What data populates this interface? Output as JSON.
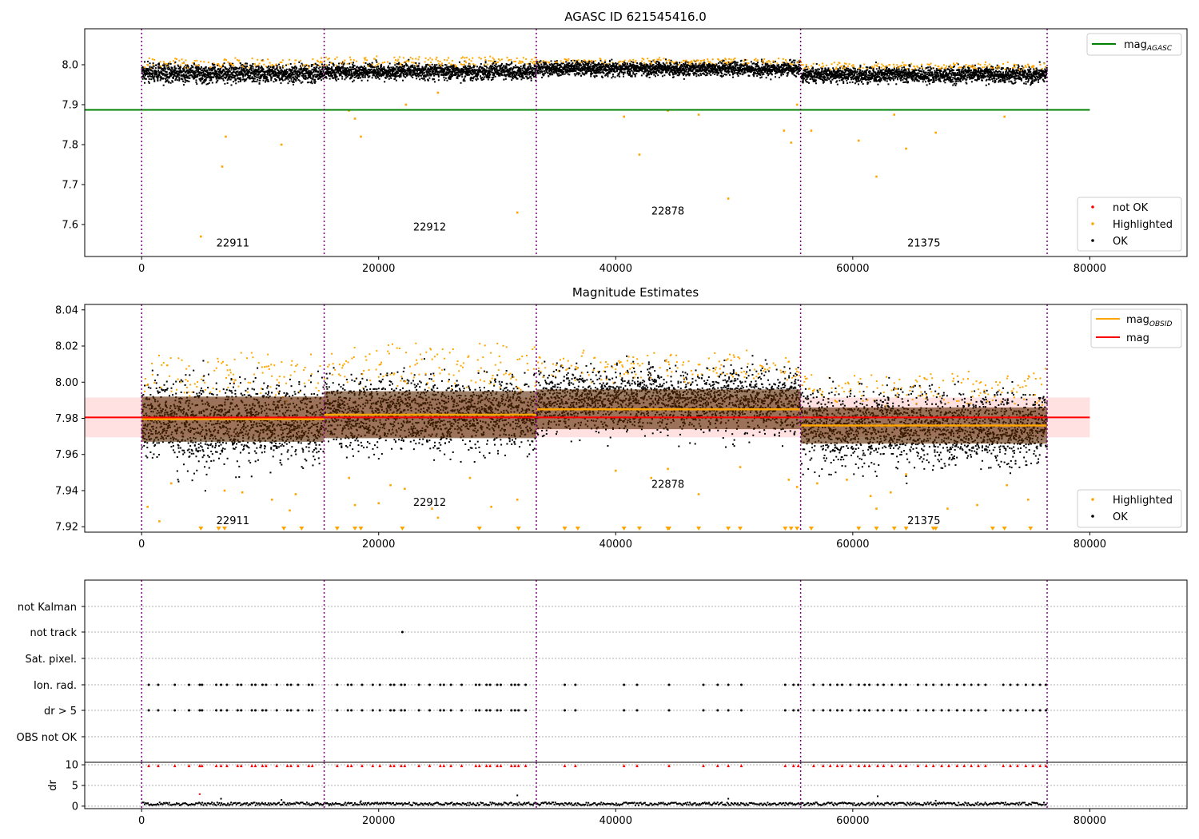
{
  "chart_data": [
    {
      "type": "scatter",
      "title": "AGASC ID 621545416.0",
      "xlim": [
        -4800,
        88200
      ],
      "ylim": [
        7.52,
        8.09
      ],
      "xticks": [
        0,
        20000,
        40000,
        60000,
        80000
      ],
      "yticks": [
        7.6,
        7.7,
        7.8,
        7.9,
        8.0
      ],
      "obsid_boundaries": [
        0,
        15400,
        33300,
        55600,
        76400
      ],
      "obsid_labels": [
        {
          "x": 7700,
          "y": 7.545,
          "text": "22911"
        },
        {
          "x": 24300,
          "y": 7.585,
          "text": "22912"
        },
        {
          "x": 44400,
          "y": 7.625,
          "text": "22878"
        },
        {
          "x": 66000,
          "y": 7.545,
          "text": "21375"
        }
      ],
      "lines": [
        {
          "name": "mag_AGASC",
          "y": 7.887,
          "x": [
            -4800,
            80000
          ],
          "color": "#008000"
        }
      ],
      "segments": [
        {
          "x0": 0,
          "x1": 15400,
          "center": 7.978,
          "spread": 0.028,
          "hi_above": 0.042
        },
        {
          "x0": 15400,
          "x1": 33300,
          "center": 7.983,
          "spread": 0.025,
          "hi_above": 0.045
        },
        {
          "x0": 33300,
          "x1": 55600,
          "center": 7.99,
          "spread": 0.022,
          "hi_above": 0.025
        },
        {
          "x0": 55600,
          "x1": 76400,
          "center": 7.975,
          "spread": 0.025,
          "hi_above": 0.03
        }
      ],
      "outliers": [
        [
          5000,
          7.57
        ],
        [
          6800,
          7.745
        ],
        [
          7100,
          7.82
        ],
        [
          11800,
          7.8
        ],
        [
          17500,
          7.885
        ],
        [
          18000,
          7.865
        ],
        [
          18500,
          7.82
        ],
        [
          22300,
          7.9
        ],
        [
          25000,
          7.93
        ],
        [
          31700,
          7.63
        ],
        [
          40700,
          7.87
        ],
        [
          42000,
          7.775
        ],
        [
          44400,
          7.885
        ],
        [
          47000,
          7.875
        ],
        [
          49500,
          7.665
        ],
        [
          54800,
          7.805
        ],
        [
          54200,
          7.835
        ],
        [
          55300,
          7.9
        ],
        [
          56500,
          7.835
        ],
        [
          60500,
          7.81
        ],
        [
          62000,
          7.72
        ],
        [
          63500,
          7.875
        ],
        [
          64500,
          7.79
        ],
        [
          67000,
          7.83
        ],
        [
          72800,
          7.87
        ]
      ],
      "legend": [
        {
          "label": "not OK",
          "color": "#ff0000"
        },
        {
          "label": "Highlighted",
          "color": "#ffa500"
        },
        {
          "label": "OK",
          "color": "#000000"
        }
      ],
      "line_legend": [
        {
          "label_main": "mag",
          "label_sub": "AGASC",
          "color": "#008000"
        }
      ]
    },
    {
      "type": "scatter",
      "title": "Magnitude Estimates",
      "xlim": [
        -4800,
        88200
      ],
      "ylim": [
        7.917,
        8.043
      ],
      "xticks": [
        0,
        20000,
        40000,
        60000,
        80000
      ],
      "yticks": [
        7.92,
        7.94,
        7.96,
        7.98,
        8.0,
        8.02,
        8.04
      ],
      "obsid_boundaries": [
        0,
        15400,
        33300,
        55600,
        76400
      ],
      "obsid_labels": [
        {
          "x": 7700,
          "y": 7.9215,
          "text": "22911"
        },
        {
          "x": 24300,
          "y": 7.9315,
          "text": "22912"
        },
        {
          "x": 44400,
          "y": 7.9415,
          "text": "22878"
        },
        {
          "x": 66000,
          "y": 7.9215,
          "text": "21375"
        }
      ],
      "mag": 7.9805,
      "mag_band": [
        7.9695,
        7.9915
      ],
      "mag_obsid": [
        {
          "x0": 0,
          "x1": 15400,
          "y": 7.9795,
          "band": [
            7.967,
            7.992
          ]
        },
        {
          "x0": 15400,
          "x1": 33300,
          "y": 7.982,
          "band": [
            7.969,
            7.995
          ]
        },
        {
          "x0": 33300,
          "x1": 55600,
          "y": 7.985,
          "band": [
            7.974,
            7.996
          ]
        },
        {
          "x0": 55600,
          "x1": 76400,
          "y": 7.976,
          "band": [
            7.966,
            7.986
          ]
        }
      ],
      "segments": [
        {
          "x0": 0,
          "x1": 15400,
          "center": 7.978,
          "spread": 0.028,
          "hi_above": 0.042
        },
        {
          "x0": 15400,
          "x1": 33300,
          "center": 7.983,
          "spread": 0.025,
          "hi_above": 0.045
        },
        {
          "x0": 33300,
          "x1": 55600,
          "center": 7.99,
          "spread": 0.022,
          "hi_above": 0.025
        },
        {
          "x0": 55600,
          "x1": 76400,
          "center": 7.975,
          "spread": 0.025,
          "hi_above": 0.03
        }
      ],
      "outliers": [
        [
          500,
          7.931
        ],
        [
          1500,
          7.923
        ],
        [
          2500,
          7.944
        ],
        [
          7000,
          7.94
        ],
        [
          8500,
          7.939
        ],
        [
          11000,
          7.935
        ],
        [
          12500,
          7.929
        ],
        [
          13000,
          7.938
        ],
        [
          17500,
          7.947
        ],
        [
          18000,
          7.932
        ],
        [
          20000,
          7.933
        ],
        [
          21000,
          7.943
        ],
        [
          22200,
          7.941
        ],
        [
          24500,
          7.93
        ],
        [
          25000,
          7.925
        ],
        [
          27700,
          7.947
        ],
        [
          29500,
          7.931
        ],
        [
          31700,
          7.935
        ],
        [
          40000,
          7.951
        ],
        [
          43000,
          7.947
        ],
        [
          44400,
          7.952
        ],
        [
          47000,
          7.938
        ],
        [
          50500,
          7.953
        ],
        [
          54600,
          7.946
        ],
        [
          55300,
          7.942
        ],
        [
          57000,
          7.944
        ],
        [
          59500,
          7.946
        ],
        [
          61500,
          7.937
        ],
        [
          62000,
          7.93
        ],
        [
          63200,
          7.939
        ],
        [
          64500,
          7.949
        ],
        [
          68000,
          7.93
        ],
        [
          70500,
          7.932
        ],
        [
          73000,
          7.943
        ],
        [
          74800,
          7.935
        ]
      ],
      "clipped_low_x": [
        5000,
        6500,
        7000,
        12000,
        13500,
        16500,
        18000,
        18500,
        22000,
        28500,
        31800,
        35700,
        36800,
        40700,
        42000,
        44400,
        44500,
        47000,
        49500,
        50500,
        54300,
        54800,
        55300,
        56500,
        60500,
        62000,
        63500,
        64500,
        66800,
        67000,
        71800,
        72800,
        75000
      ],
      "legend": [
        {
          "label": "Highlighted",
          "color": "#ffa500"
        },
        {
          "label": "OK",
          "color": "#000000"
        }
      ],
      "line_legend": [
        {
          "label_main": "mag",
          "label_sub": "OBSID",
          "color": "#ffa500"
        },
        {
          "label_main": "mag",
          "label_sub": "",
          "color": "#ff0000"
        }
      ]
    },
    {
      "type": "scatter",
      "title": "",
      "xlim": [
        -4800,
        88200
      ],
      "xticks": [
        0,
        20000,
        40000,
        60000,
        80000
      ],
      "obsid_boundaries": [
        0,
        15400,
        33300,
        55600,
        76400
      ],
      "flag_labels": [
        "not Kalman",
        "not track",
        "Sat. pixel.",
        "Ion. rad.",
        "dr > 5",
        "OBS not OK"
      ],
      "flag_points": {
        "not track": [
          22000
        ],
        "Ion. rad.": [
          600,
          1400,
          2800,
          4000,
          4900,
          5100,
          6300,
          6700,
          7200,
          8100,
          8400,
          9300,
          9600,
          10200,
          10500,
          11400,
          12300,
          12600,
          13200,
          14100,
          14400,
          16500,
          17400,
          17700,
          18600,
          19500,
          20100,
          21000,
          21300,
          21900,
          22200,
          23400,
          24300,
          25200,
          25500,
          26100,
          27000,
          28200,
          28500,
          29100,
          29400,
          30000,
          30300,
          31200,
          31500,
          31800,
          32400,
          35700,
          36600,
          40700,
          41800,
          44500,
          47400,
          48600,
          49500,
          50600,
          54300,
          55000,
          55400,
          56700,
          57500,
          58100,
          58700,
          59100,
          59800,
          60500,
          61000,
          61400,
          62100,
          62600,
          63300,
          64000,
          64500,
          65500,
          66200,
          66800,
          67500,
          68100,
          68800,
          69400,
          70000,
          70600,
          71200,
          72700,
          73300,
          73900,
          74600,
          75200,
          75800,
          76300
        ],
        "dr > 5": [
          600,
          1400,
          2800,
          4000,
          4900,
          5100,
          6300,
          6700,
          7200,
          8100,
          8400,
          9300,
          9600,
          10200,
          10500,
          11400,
          12300,
          12600,
          13200,
          14100,
          14400,
          16500,
          17400,
          17700,
          18600,
          19500,
          20100,
          21000,
          21300,
          21900,
          22200,
          23400,
          24300,
          25200,
          25500,
          26100,
          27000,
          28200,
          28500,
          29100,
          29400,
          30000,
          30300,
          31200,
          31500,
          31800,
          32400,
          35700,
          36600,
          40700,
          41800,
          44500,
          47400,
          48600,
          49500,
          50600,
          54300,
          55000,
          55400,
          56700,
          57500,
          58100,
          58700,
          59100,
          59800,
          60500,
          61000,
          61400,
          62100,
          62600,
          63300,
          64000,
          64500,
          65500,
          66200,
          66800,
          67500,
          68100,
          68800,
          69400,
          70000,
          70600,
          71200,
          72700,
          73300,
          73900,
          74600,
          75200,
          75800,
          76300
        ]
      }
    },
    {
      "type": "scatter",
      "title": "",
      "ylabel": "dr",
      "xlim": [
        -4800,
        88200
      ],
      "ylim": [
        -0.6,
        10.6
      ],
      "xticks": [
        0,
        20000,
        40000,
        60000,
        80000
      ],
      "yticks": [
        0,
        5,
        10
      ],
      "obsid_boundaries": [
        0,
        15400,
        33300,
        55600,
        76400
      ],
      "red_marker_y": 9.8,
      "outliers": [
        [
          4900,
          2.9
        ],
        [
          6700,
          1.8
        ],
        [
          11800,
          1.5
        ],
        [
          18500,
          1.2
        ],
        [
          31700,
          2.6
        ],
        [
          49500,
          1.8
        ],
        [
          62100,
          2.4
        ],
        [
          67000,
          1.3
        ]
      ]
    }
  ]
}
